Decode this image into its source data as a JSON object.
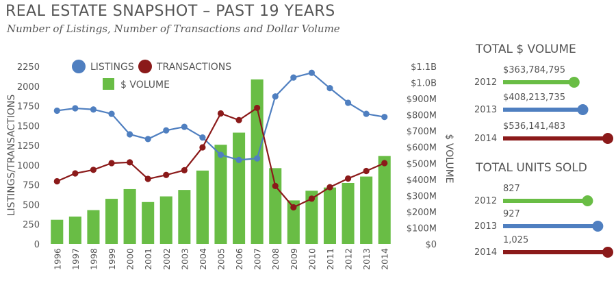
{
  "title": "REAL ESTATE SNAPSHOT – PAST 19 YEARS",
  "subtitle": "Number of Listings, Number of Transactions and Dollar Volume",
  "colors": {
    "listings": "#4f7fc0",
    "transactions": "#8b1a1a",
    "volume": "#69bd45",
    "text": "#555555"
  },
  "chart_data": [
    {
      "type": "bar+line",
      "categories": [
        "1996",
        "1997",
        "1998",
        "1999",
        "2000",
        "2001",
        "2002",
        "2003",
        "2004",
        "2005",
        "2006",
        "2007",
        "2008",
        "2009",
        "2010",
        "2011",
        "2012",
        "2013",
        "2014"
      ],
      "series": [
        {
          "name": "LISTINGS",
          "type": "line",
          "axis": "left",
          "values": [
            1690,
            1720,
            1705,
            1650,
            1390,
            1330,
            1440,
            1485,
            1350,
            1130,
            1065,
            1085,
            1870,
            2110,
            2170,
            1975,
            1790,
            1650,
            1610
          ]
        },
        {
          "name": "TRANSACTIONS",
          "type": "line",
          "axis": "left",
          "values": [
            795,
            895,
            940,
            1025,
            1035,
            825,
            875,
            935,
            1225,
            1655,
            1570,
            1725,
            735,
            465,
            575,
            720,
            830,
            925,
            1025
          ]
        },
        {
          "name": "$ VOLUME",
          "type": "bar",
          "axis": "right",
          "values": [
            150000000,
            170000000,
            210000000,
            280000000,
            340000000,
            260000000,
            295000000,
            335000000,
            455000000,
            615000000,
            690000000,
            1020000000,
            470000000,
            270000000,
            330000000,
            350000000,
            378000000,
            418000000,
            545000000
          ]
        }
      ],
      "ylabel_left": "LISTINGS/TRANSACTIONS",
      "ylabel_right": "$ VOLUME",
      "ylim_left": [
        0,
        2250
      ],
      "ylim_right": [
        0,
        1100000000
      ],
      "left_ticks": [
        "0",
        "250",
        "500",
        "750",
        "1000",
        "1250",
        "1500",
        "1750",
        "2000",
        "2250"
      ],
      "right_ticks": [
        "$0",
        "$100M",
        "$200M",
        "$300M",
        "$400M",
        "$500M",
        "$600M",
        "$700M",
        "$800M",
        "$900M",
        "$1.0B",
        "$1.1B"
      ],
      "grid": false,
      "legend": "top-left"
    },
    {
      "type": "bar",
      "title": "TOTAL $ VOLUME",
      "categories": [
        "2012",
        "2013",
        "2014"
      ],
      "values": [
        363784795,
        408213735,
        536141483
      ],
      "labels": [
        "$363,784,795",
        "$408,213,735",
        "$536,141,483"
      ],
      "colors": [
        "#69bd45",
        "#4f7fc0",
        "#8b1a1a"
      ]
    },
    {
      "type": "bar",
      "title": "TOTAL UNITS SOLD",
      "categories": [
        "2012",
        "2013",
        "2014"
      ],
      "values": [
        827,
        927,
        1025
      ],
      "labels": [
        "827",
        "927",
        "1,025"
      ],
      "colors": [
        "#69bd45",
        "#4f7fc0",
        "#8b1a1a"
      ]
    }
  ]
}
